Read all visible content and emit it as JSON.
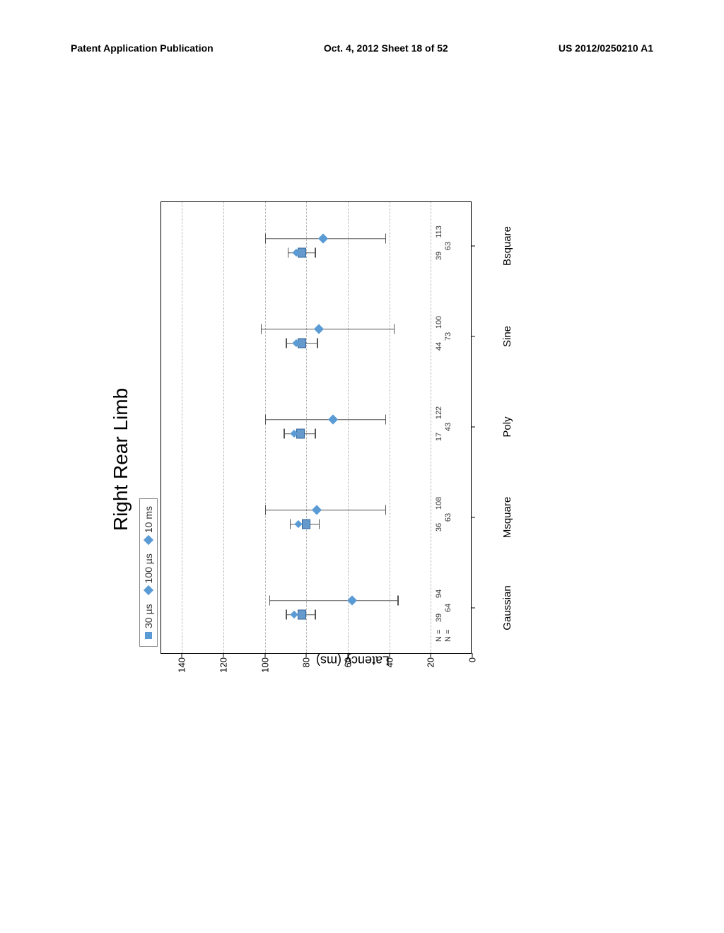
{
  "header": {
    "left": "Patent Application Publication",
    "center": "Oct. 4, 2012  Sheet 18 of 52",
    "right": "US 2012/0250210 A1"
  },
  "chart": {
    "type": "boxplot",
    "title": "Right Rear Limb",
    "ylabel": "Latency (ms)",
    "ylim": [
      0,
      150
    ],
    "ytick_step": 20,
    "yticks": [
      0,
      20,
      40,
      60,
      80,
      100,
      120,
      140
    ],
    "background_color": "#ffffff",
    "grid_color": "#aaaaaa",
    "border_color": "#000000",
    "legend": {
      "items": [
        {
          "marker": "square",
          "label": "30 µs"
        },
        {
          "marker": "diamond",
          "label": "100 µs"
        },
        {
          "marker": "diamond",
          "label": "10 ms"
        }
      ],
      "border_color": "#888888",
      "marker_color": "#5b9bd5"
    },
    "categories": [
      "Gaussian",
      "Msquare",
      "Poly",
      "Sine",
      "Bsquare"
    ],
    "n_rows": [
      {
        "prefix": "N =",
        "values": [
          "39",
          "36",
          "17",
          "44",
          "39"
        ]
      },
      {
        "prefix": "N =",
        "values": [
          "64",
          "63",
          "43",
          "73",
          "63"
        ]
      },
      {
        "prefix": "",
        "values": [
          "94",
          "108",
          "122",
          "100",
          "113"
        ]
      }
    ],
    "series_a": {
      "color": "#6699cc",
      "offset": -10,
      "points": [
        {
          "median": 82,
          "low": 76,
          "high": 90,
          "extra": 86
        },
        {
          "median": 80,
          "low": 74,
          "high": 88,
          "extra": 84
        },
        {
          "median": 83,
          "low": 76,
          "high": 91,
          "extra": 86
        },
        {
          "median": 82,
          "low": 75,
          "high": 90,
          "extra": 85
        },
        {
          "median": 82,
          "low": 76,
          "high": 89,
          "extra": 85
        }
      ]
    },
    "series_b": {
      "color": "#5b9bd5",
      "offset": 10,
      "points": [
        {
          "value": 58,
          "low": 36,
          "high": 98
        },
        {
          "value": 75,
          "low": 42,
          "high": 100
        },
        {
          "value": 67,
          "low": 42,
          "high": 100
        },
        {
          "value": 74,
          "low": 38,
          "high": 102
        },
        {
          "value": 72,
          "low": 42,
          "high": 100
        }
      ]
    }
  }
}
